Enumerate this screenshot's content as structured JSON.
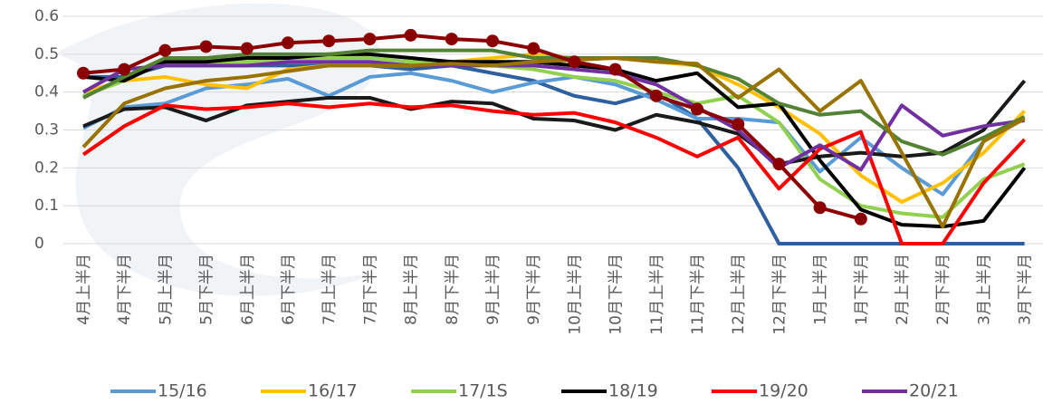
{
  "chart_data": {
    "type": "line",
    "categories": [
      "4月上半月",
      "4月下半月",
      "5月上半月",
      "5月下半月",
      "6月上半月",
      "6月下半月",
      "7月上半月",
      "7月下半月",
      "8月上半月",
      "8月下半月",
      "9月上半月",
      "9月下半月",
      "10月上半月",
      "10月下半月",
      "11月上半月",
      "11月下半月",
      "12月上半月",
      "12月下半月",
      "1月上半月",
      "1月下半月",
      "2月上半月",
      "2月下半月",
      "3月上半月",
      "3月下半月"
    ],
    "ylim": [
      0,
      0.6
    ],
    "yticks": [
      0,
      0.1,
      0.2,
      0.3,
      0.4,
      0.5,
      0.6
    ],
    "grid": true,
    "series": [
      {
        "color": "#2e5f9e",
        "values": [
          0.44,
          0.44,
          0.47,
          0.47,
          0.47,
          0.47,
          0.47,
          0.47,
          0.46,
          0.47,
          0.45,
          0.43,
          0.39,
          0.37,
          0.4,
          0.33,
          0.2,
          0,
          0,
          0,
          0,
          0,
          0,
          0
        ]
      },
      {
        "name": "15/16",
        "color": "#5b9bd5",
        "values": [
          0.305,
          0.36,
          0.37,
          0.41,
          0.42,
          0.435,
          0.39,
          0.44,
          0.45,
          0.43,
          0.4,
          0.425,
          0.44,
          0.42,
          0.38,
          0.33,
          0.33,
          0.32,
          0.19,
          0.28,
          0.2,
          0.13,
          0.27,
          0.33
        ]
      },
      {
        "name": "16/17",
        "color": "#ffc000",
        "values": [
          0.4,
          0.43,
          0.44,
          0.42,
          0.41,
          0.46,
          0.47,
          0.47,
          0.47,
          0.48,
          0.49,
          0.5,
          0.49,
          0.49,
          0.48,
          0.47,
          0.42,
          0.36,
          0.29,
          0.18,
          0.11,
          0.16,
          0.24,
          0.35
        ]
      },
      {
        "name": "17/1S",
        "color": "#92d050",
        "values": [
          0.39,
          0.43,
          0.48,
          0.48,
          0.48,
          0.49,
          0.49,
          0.49,
          0.48,
          0.48,
          0.47,
          0.46,
          0.44,
          0.43,
          0.4,
          0.37,
          0.39,
          0.32,
          0.17,
          0.1,
          0.08,
          0.07,
          0.17,
          0.21
        ]
      },
      {
        "color": "#1a1a1a",
        "values": [
          0.31,
          0.355,
          0.36,
          0.325,
          0.365,
          0.375,
          0.385,
          0.385,
          0.355,
          0.375,
          0.37,
          0.33,
          0.325,
          0.3,
          0.34,
          0.32,
          0.29,
          0.21,
          0.23,
          0.24,
          0.23,
          0.24,
          0.3,
          0.43
        ]
      },
      {
        "name": "18/19",
        "color": "#000000",
        "values": [
          0.44,
          0.43,
          0.48,
          0.48,
          0.49,
          0.49,
          0.5,
          0.5,
          0.49,
          0.48,
          0.48,
          0.48,
          0.47,
          0.46,
          0.43,
          0.45,
          0.36,
          0.37,
          0.22,
          0.09,
          0.05,
          0.045,
          0.06,
          0.2
        ]
      },
      {
        "name": "19/20",
        "color": "#ff0000",
        "values": [
          0.235,
          0.31,
          0.365,
          0.355,
          0.36,
          0.37,
          0.36,
          0.37,
          0.36,
          0.365,
          0.35,
          0.34,
          0.345,
          0.32,
          0.28,
          0.23,
          0.28,
          0.145,
          0.25,
          0.295,
          0,
          0,
          0.16,
          0.275
        ]
      },
      {
        "name": "20/21",
        "color": "#7030a0",
        "values": [
          0.4,
          0.46,
          0.47,
          0.47,
          0.47,
          0.48,
          0.48,
          0.48,
          0.47,
          0.47,
          0.47,
          0.47,
          0.46,
          0.45,
          0.42,
          0.36,
          0.3,
          0.2,
          0.26,
          0.195,
          0.365,
          0.285,
          0.31,
          0.325
        ]
      },
      {
        "color": "#548235",
        "values": [
          0.385,
          0.44,
          0.49,
          0.49,
          0.5,
          0.5,
          0.5,
          0.51,
          0.51,
          0.51,
          0.51,
          0.49,
          0.49,
          0.49,
          0.49,
          0.47,
          0.435,
          0.37,
          0.34,
          0.35,
          0.27,
          0.235,
          0.28,
          0.335
        ]
      },
      {
        "color": "#997300",
        "values": [
          0.255,
          0.37,
          0.41,
          0.43,
          0.44,
          0.455,
          0.47,
          0.47,
          0.47,
          0.475,
          0.47,
          0.48,
          0.485,
          0.49,
          0.48,
          0.475,
          0.385,
          0.46,
          0.35,
          0.43,
          0.24,
          0.045,
          0.27,
          0.33
        ]
      },
      {
        "color": "#8b0000",
        "marker": true,
        "values": [
          0.45,
          0.46,
          0.51,
          0.52,
          0.515,
          0.53,
          0.535,
          0.54,
          0.55,
          0.54,
          0.535,
          0.515,
          0.48,
          0.46,
          0.39,
          0.355,
          0.315,
          0.21,
          0.095,
          0.065,
          null,
          null,
          null,
          null
        ]
      }
    ]
  }
}
